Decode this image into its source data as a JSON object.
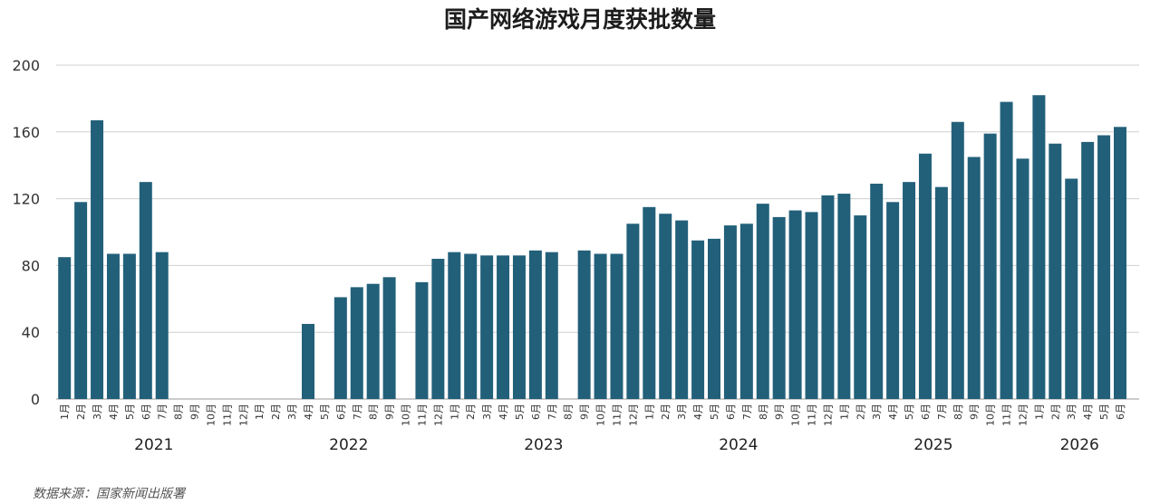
{
  "chart_data": {
    "type": "bar",
    "title": "国产网络游戏月度获批数量",
    "xlabel": "",
    "ylabel": "",
    "ylim": [
      0,
      200
    ],
    "yticks": [
      0,
      40,
      80,
      120,
      160,
      200
    ],
    "grid": true,
    "bar_color": "#22607a",
    "categories": [
      "1月",
      "2月",
      "3月",
      "4月",
      "5月",
      "6月",
      "7月",
      "8月",
      "9月",
      "10月",
      "11月",
      "12月",
      "1月",
      "2月",
      "3月",
      "4月",
      "5月",
      "6月",
      "7月",
      "8月",
      "9月",
      "10月",
      "11月",
      "12月",
      "1月",
      "2月",
      "3月",
      "4月",
      "5月",
      "6月",
      "7月",
      "8月",
      "9月",
      "10月",
      "11月",
      "12月",
      "1月",
      "2月",
      "3月",
      "4月",
      "5月",
      "6月",
      "7月",
      "8月",
      "9月",
      "10月",
      "11月",
      "12月",
      "1月",
      "2月",
      "3月",
      "4月",
      "5月",
      "6月",
      "7月",
      "8月",
      "9月",
      "10月",
      "11月",
      "12月",
      "1月",
      "2月",
      "3月",
      "4月",
      "5月",
      "6月"
    ],
    "values": [
      85,
      118,
      167,
      87,
      87,
      130,
      88,
      0,
      0,
      0,
      0,
      0,
      0,
      0,
      0,
      45,
      0,
      61,
      67,
      69,
      73,
      0,
      70,
      84,
      88,
      87,
      86,
      86,
      86,
      89,
      88,
      0,
      89,
      87,
      87,
      105,
      115,
      111,
      107,
      95,
      96,
      104,
      105,
      117,
      109,
      113,
      112,
      122,
      123,
      110,
      129,
      118,
      130,
      147,
      127,
      166,
      145,
      159,
      178,
      144,
      182,
      153,
      132,
      154,
      158,
      163
    ],
    "year_groups": [
      {
        "label": "2021",
        "start": 0,
        "end": 11
      },
      {
        "label": "2022",
        "start": 12,
        "end": 23
      },
      {
        "label": "2023",
        "start": 24,
        "end": 35
      },
      {
        "label": "2024",
        "start": 36,
        "end": 47
      },
      {
        "label": "2025",
        "start": 48,
        "end": 59
      },
      {
        "label": "2026",
        "start": 60,
        "end": 65
      }
    ]
  },
  "source_note": "数据来源：国家新闻出版署"
}
